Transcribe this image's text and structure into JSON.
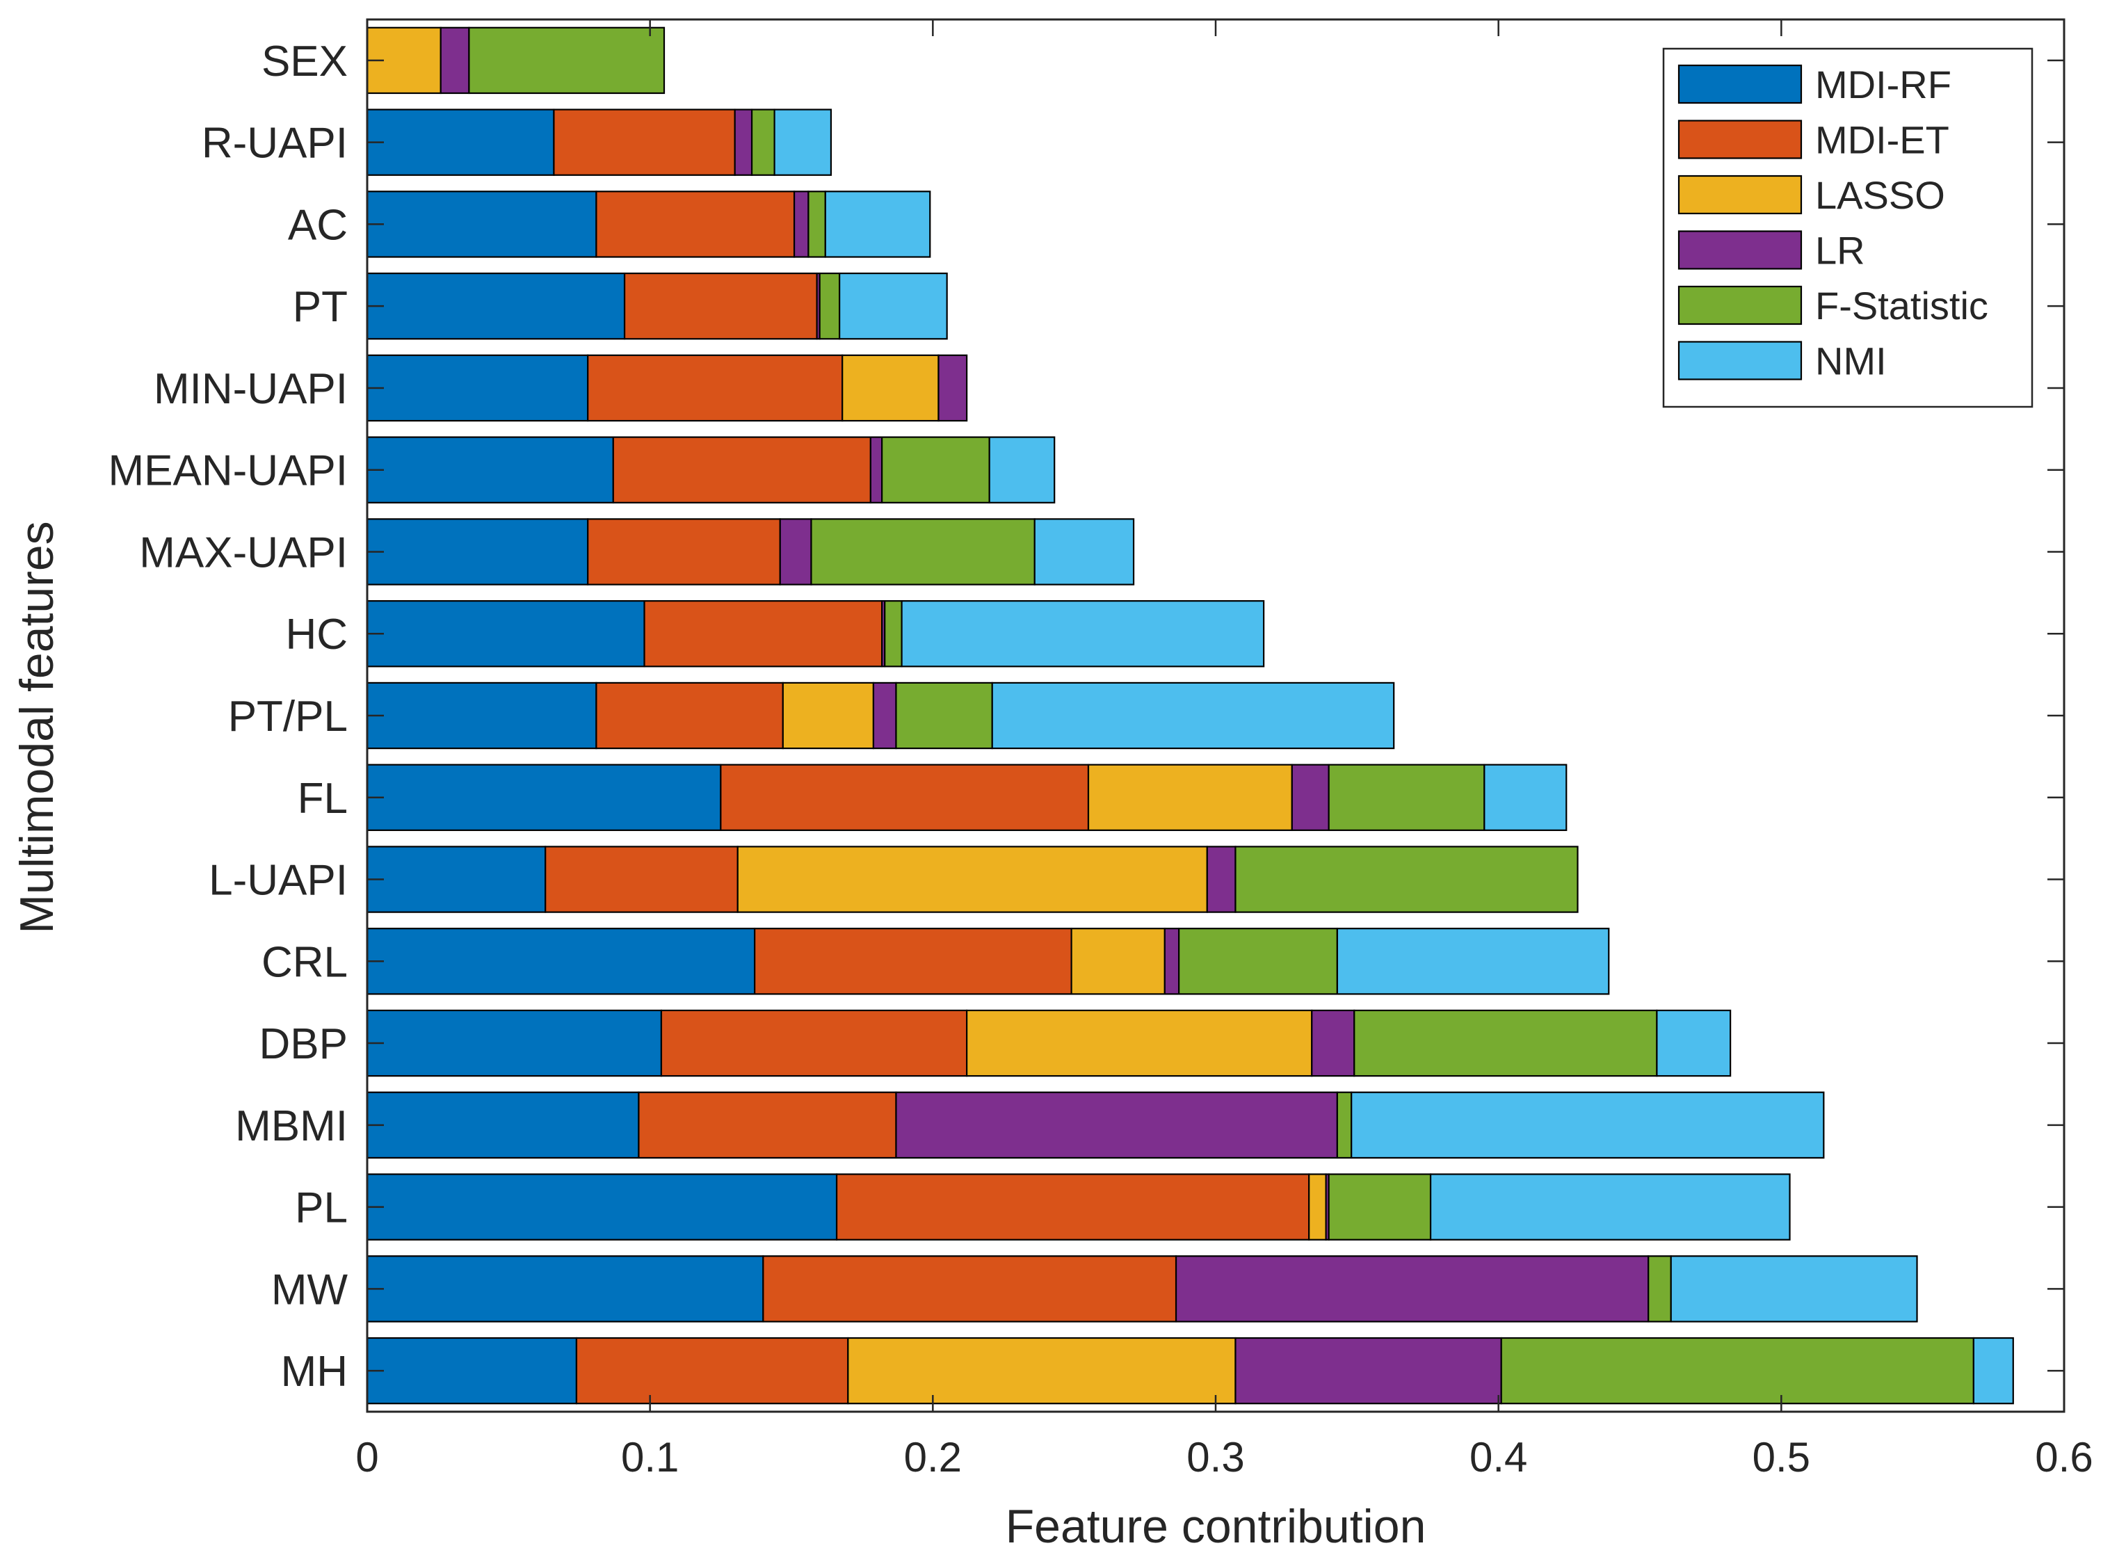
{
  "chart_data": {
    "type": "bar",
    "orientation": "horizontal",
    "stacked": true,
    "title": "",
    "xlabel": "Feature contribution",
    "ylabel": "Multimodal features",
    "xlim": [
      0,
      0.6
    ],
    "xticks": [
      "0",
      "0.1",
      "0.2",
      "0.3",
      "0.4",
      "0.5",
      "0.6"
    ],
    "grid": false,
    "legend_position": "top-right",
    "categories": [
      "SEX",
      "R-UAPI",
      "AC",
      "PT",
      "MIN-UAPI",
      "MEAN-UAPI",
      "MAX-UAPI",
      "HC",
      "PT/PL",
      "FL",
      "L-UAPI",
      "CRL",
      "DBP",
      "MBMI",
      "PL",
      "MW",
      "MH"
    ],
    "series": [
      {
        "name": "MDI-RF",
        "color": "#0072BD",
        "values": [
          0,
          0.066,
          0.081,
          0.091,
          0.078,
          0.087,
          0.078,
          0.098,
          0.081,
          0.125,
          0.063,
          0.137,
          0.104,
          0.096,
          0.166,
          0.14,
          0.074
        ]
      },
      {
        "name": "MDI-ET",
        "color": "#D95319",
        "values": [
          0,
          0.064,
          0.07,
          0.068,
          0.09,
          0.091,
          0.068,
          0.084,
          0.066,
          0.13,
          0.068,
          0.112,
          0.108,
          0.091,
          0.167,
          0.146,
          0.096
        ]
      },
      {
        "name": "LASSO",
        "color": "#EDB120",
        "values": [
          0.026,
          0,
          0,
          0,
          0.034,
          0,
          0,
          0,
          0.032,
          0.072,
          0.166,
          0.033,
          0.122,
          0,
          0.006,
          0,
          0.137
        ]
      },
      {
        "name": "LR",
        "color": "#7E2F8E",
        "values": [
          0.01,
          0.006,
          0.005,
          0.001,
          0.01,
          0.004,
          0.011,
          0.001,
          0.008,
          0.013,
          0.01,
          0.005,
          0.015,
          0.156,
          0.001,
          0.167,
          0.094
        ]
      },
      {
        "name": "F-Statistic",
        "color": "#77AC30",
        "values": [
          0.069,
          0.008,
          0.006,
          0.007,
          0,
          0.038,
          0.079,
          0.006,
          0.034,
          0.055,
          0.121,
          0.056,
          0.107,
          0.005,
          0.036,
          0.008,
          0.167
        ]
      },
      {
        "name": "NMI",
        "color": "#4DBEEE",
        "values": [
          0,
          0.02,
          0.037,
          0.038,
          0,
          0.023,
          0.035,
          0.128,
          0.142,
          0.029,
          0,
          0.096,
          0.026,
          0.167,
          0.127,
          0.087,
          0.014
        ]
      }
    ]
  }
}
